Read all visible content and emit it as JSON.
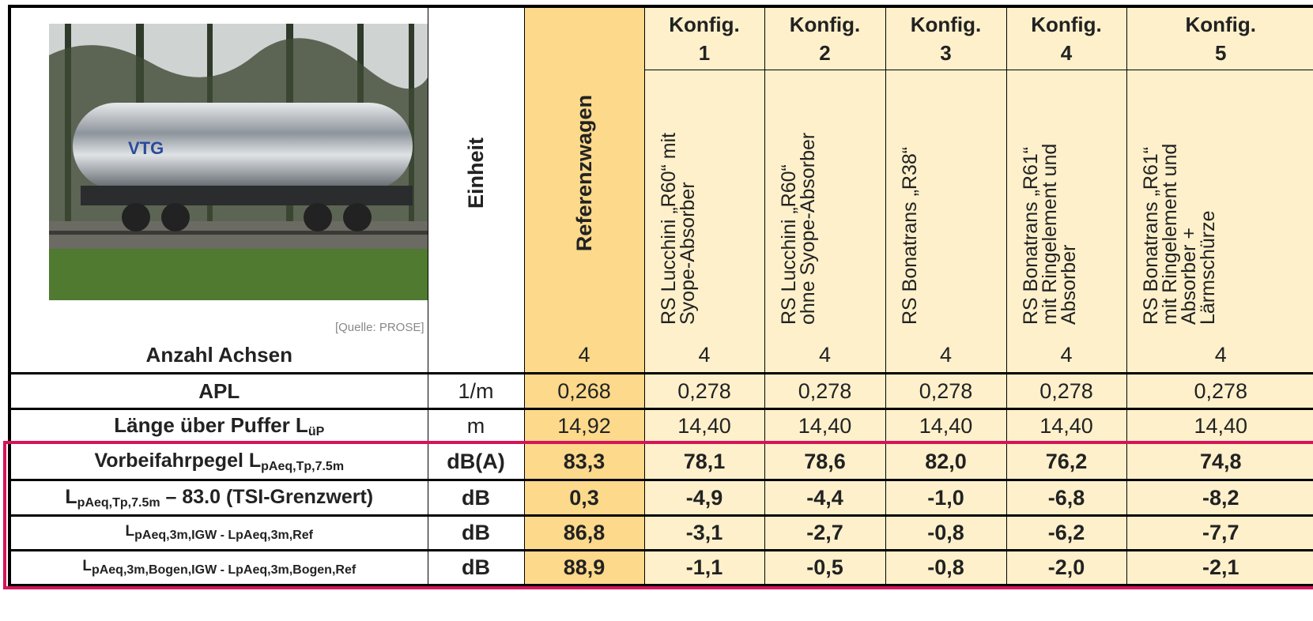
{
  "image_caption": "[Quelle: PROSE]",
  "header": {
    "unit": "Einheit",
    "reference": "Referenzwagen",
    "configs": [
      {
        "label": "Konfig.",
        "number": "1",
        "description_lines": [
          "RS Lucchini „R60“ mit",
          "Syope-Absorber"
        ]
      },
      {
        "label": "Konfig.",
        "number": "2",
        "description_lines": [
          "RS Lucchini „R60“",
          "ohne Syope-Absorber"
        ]
      },
      {
        "label": "Konfig.",
        "number": "3",
        "description_lines": [
          "RS Bonatrans „R38“"
        ]
      },
      {
        "label": "Konfig.",
        "number": "4",
        "description_lines": [
          "RS Bonatrans „R61“",
          "mit Ringelement und",
          "Absorber"
        ]
      },
      {
        "label": "Konfig.",
        "number": "5",
        "description_lines": [
          "RS Bonatrans „R61“",
          "mit Ringelement und",
          "Absorber +",
          "Lärmschürze"
        ]
      }
    ]
  },
  "table": {
    "rows": [
      {
        "label_parts": [
          "Anzahl Achsen"
        ],
        "values": [
          "4",
          "4",
          "4",
          "4",
          "4",
          "4"
        ]
      },
      {
        "label_parts": [
          "APL"
        ],
        "unit": "1/m",
        "values": [
          "0,268",
          "0,278",
          "0,278",
          "0,278",
          "0,278",
          "0,278"
        ]
      },
      {
        "label_parts": [
          "Länge über Puffer L",
          "üP"
        ],
        "unit": "m",
        "values": [
          "14,92",
          "14,40",
          "14,40",
          "14,40",
          "14,40",
          "14,40"
        ]
      },
      {
        "label_parts": [
          "Vorbeifahrpegel L",
          "pAeq,Tp,7.5m"
        ],
        "unit": "dB(A)",
        "values": [
          "83,3",
          "78,1",
          "78,6",
          "82,0",
          "76,2",
          "74,8"
        ]
      },
      {
        "label_parts": [
          "L",
          "pAeq,Tp,7.5m",
          " – 83.0 (TSI-Grenzwert)"
        ],
        "unit": "dB",
        "values": [
          "0,3",
          "-4,9",
          "-4,4",
          "-1,0",
          "-6,8",
          "-8,2"
        ]
      },
      {
        "label_parts": [
          "L",
          "pAeq,3m,IGW - LpAeq,3m,Ref"
        ],
        "unit": "dB",
        "values": [
          "86,8",
          "-3,1",
          "-2,7",
          "-0,8",
          "-6,2",
          "-7,7"
        ]
      },
      {
        "label_parts": [
          "L",
          "pAeq,3m,Bogen,IGW - LpAeq,3m,Bogen,Ref"
        ],
        "unit": "dB",
        "values": [
          "88,9",
          "-1,1",
          "-0,5",
          "-0,8",
          "-2,0",
          "-2,1"
        ]
      }
    ]
  }
}
